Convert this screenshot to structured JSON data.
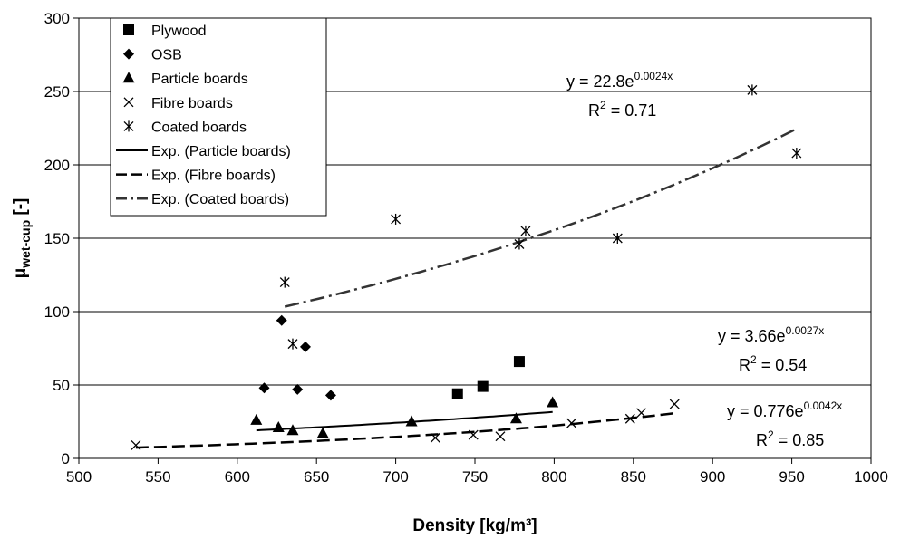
{
  "chart_data": {
    "type": "scatter",
    "xlabel": "Density [kg/m³]",
    "ylabel_main": "μ",
    "ylabel_sub": "wet-cup",
    "ylabel_tail": " [-]",
    "xlim": [
      500,
      1000
    ],
    "ylim": [
      0,
      300
    ],
    "xticks": [
      500,
      550,
      600,
      650,
      700,
      750,
      800,
      850,
      900,
      950,
      1000
    ],
    "yticks": [
      0,
      50,
      100,
      150,
      200,
      250,
      300
    ],
    "grid": "horizontal",
    "legend_position": "top-left",
    "series": [
      {
        "name": "Plywood",
        "marker": "square",
        "points": [
          [
            739,
            44
          ],
          [
            755,
            49
          ],
          [
            778,
            66
          ]
        ]
      },
      {
        "name": "OSB",
        "marker": "diamond",
        "points": [
          [
            617,
            48
          ],
          [
            628,
            94
          ],
          [
            638,
            47
          ],
          [
            643,
            76
          ],
          [
            659,
            43
          ]
        ]
      },
      {
        "name": "Particle boards",
        "marker": "triangle",
        "points": [
          [
            612,
            26
          ],
          [
            626,
            21
          ],
          [
            635,
            19
          ],
          [
            654,
            17
          ],
          [
            710,
            25
          ],
          [
            776,
            27
          ],
          [
            799,
            38
          ]
        ]
      },
      {
        "name": "Fibre boards",
        "marker": "x",
        "points": [
          [
            536,
            9
          ],
          [
            725,
            14
          ],
          [
            749,
            16
          ],
          [
            766,
            15
          ],
          [
            811,
            24
          ],
          [
            848,
            27
          ],
          [
            855,
            31
          ],
          [
            876,
            37
          ]
        ]
      },
      {
        "name": "Coated boards",
        "marker": "asterisk",
        "points": [
          [
            630,
            120
          ],
          [
            635,
            78
          ],
          [
            700,
            163
          ],
          [
            778,
            146
          ],
          [
            782,
            155
          ],
          [
            840,
            150
          ],
          [
            925,
            251
          ],
          [
            953,
            208
          ]
        ]
      }
    ],
    "trendlines": [
      {
        "name": "Exp. (Particle boards)",
        "style": "solid",
        "a": 3.66,
        "b": 0.0027,
        "x_range": [
          612,
          799
        ]
      },
      {
        "name": "Exp. (Fibre boards)",
        "style": "dashed",
        "a": 0.776,
        "b": 0.0042,
        "x_range": [
          536,
          876
        ]
      },
      {
        "name": "Exp. (Coated boards)",
        "style": "dashdot",
        "a": 22.8,
        "b": 0.0024,
        "x_range": [
          630,
          953
        ]
      }
    ],
    "annotations": [
      {
        "eq_prefix": "y = 22.8e",
        "eq_exp": "0.0024x",
        "r2_label": "R",
        "r2_exp": "2",
        "r2_value": " = 0.71"
      },
      {
        "eq_prefix": "y = 3.66e",
        "eq_exp": "0.0027x",
        "r2_label": "R",
        "r2_exp": "2",
        "r2_value": " = 0.54"
      },
      {
        "eq_prefix": "y = 0.776e",
        "eq_exp": "0.0042x",
        "r2_label": "R",
        "r2_exp": "2",
        "r2_value": " = 0.85"
      }
    ]
  }
}
